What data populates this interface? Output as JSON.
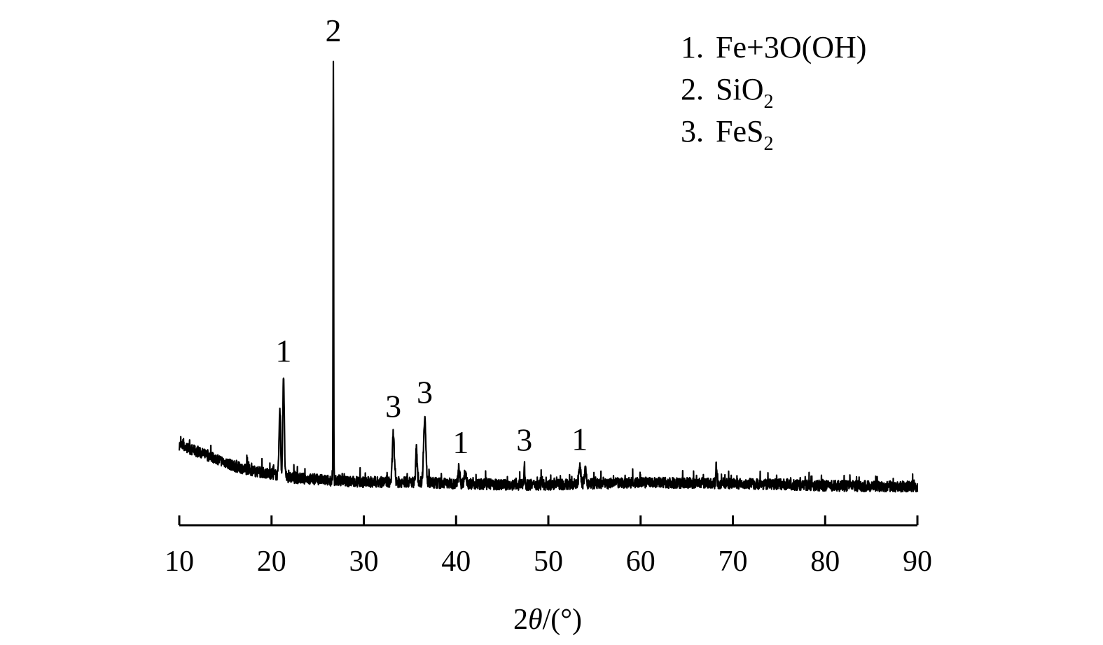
{
  "chart_data": {
    "type": "line",
    "title": "",
    "xlabel": {
      "prefix": "2",
      "symbol": "θ",
      "suffix": "/(°)"
    },
    "ylabel": "",
    "xlim": [
      10,
      90
    ],
    "ylim": [
      0,
      100
    ],
    "x_ticks": [
      10,
      20,
      30,
      40,
      50,
      60,
      70,
      80,
      90
    ],
    "x_tick_labels": [
      "10",
      "20",
      "30",
      "40",
      "50",
      "60",
      "70",
      "80",
      "90"
    ],
    "y_axis_visible": false,
    "grid": false,
    "series": [
      {
        "profile": [
          [
            10,
            10
          ],
          [
            12,
            8.5
          ],
          [
            14,
            7
          ],
          [
            16,
            5.3
          ],
          [
            18,
            4.3
          ],
          [
            20,
            3.6
          ],
          [
            22,
            2.8
          ],
          [
            24,
            2.5
          ],
          [
            26,
            2.2
          ],
          [
            28,
            2.0
          ],
          [
            30,
            1.8
          ],
          [
            32,
            1.8
          ],
          [
            34,
            1.8
          ],
          [
            36,
            1.8
          ],
          [
            38,
            1.6
          ],
          [
            40,
            1.5
          ],
          [
            45,
            1.2
          ],
          [
            50,
            1.2
          ],
          [
            55,
            1.4
          ],
          [
            60,
            1.7
          ],
          [
            65,
            1.6
          ],
          [
            70,
            1.5
          ],
          [
            75,
            1.3
          ],
          [
            80,
            1.0
          ],
          [
            85,
            0.9
          ],
          [
            90,
            0.8
          ]
        ],
        "peaks": [
          {
            "x": 20.9,
            "y": 17.5,
            "w": 0.08
          },
          {
            "x": 21.3,
            "y": 25.5,
            "w": 0.08
          },
          {
            "x": 26.7,
            "y": 96.0,
            "w": 0.03
          },
          {
            "x": 33.2,
            "y": 12.7,
            "w": 0.1
          },
          {
            "x": 35.7,
            "y": 9.0,
            "w": 0.08
          },
          {
            "x": 36.6,
            "y": 16.1,
            "w": 0.12
          },
          {
            "x": 40.3,
            "y": 4.6,
            "w": 0.08
          },
          {
            "x": 41.0,
            "y": 3.8,
            "w": 0.12
          },
          {
            "x": 47.4,
            "y": 5.7,
            "w": 0.05
          },
          {
            "x": 53.4,
            "y": 5.5,
            "w": 0.1
          },
          {
            "x": 54.0,
            "y": 4.3,
            "w": 0.1
          },
          {
            "x": 68.2,
            "y": 5.7,
            "w": 0.05
          }
        ],
        "noise": 1.2,
        "color": "#000000"
      }
    ],
    "peak_labels": [
      {
        "text": "1",
        "x": 21.3,
        "y": 28.5
      },
      {
        "text": "2",
        "x": 26.7,
        "y": 99.5
      },
      {
        "text": "3",
        "x": 33.2,
        "y": 16.2
      },
      {
        "text": "3",
        "x": 36.6,
        "y": 19.3
      },
      {
        "text": "1",
        "x": 40.5,
        "y": 8.2
      },
      {
        "text": "3",
        "x": 47.4,
        "y": 8.8
      },
      {
        "text": "1",
        "x": 53.4,
        "y": 8.9
      }
    ],
    "legend": {
      "position": "top-right",
      "entries": [
        {
          "num": "1.",
          "text": "Fe+3O(OH)",
          "sub": ""
        },
        {
          "num": "2.",
          "text": "SiO",
          "sub": "2"
        },
        {
          "num": "3.",
          "text": "FeS",
          "sub": "2"
        }
      ]
    }
  }
}
